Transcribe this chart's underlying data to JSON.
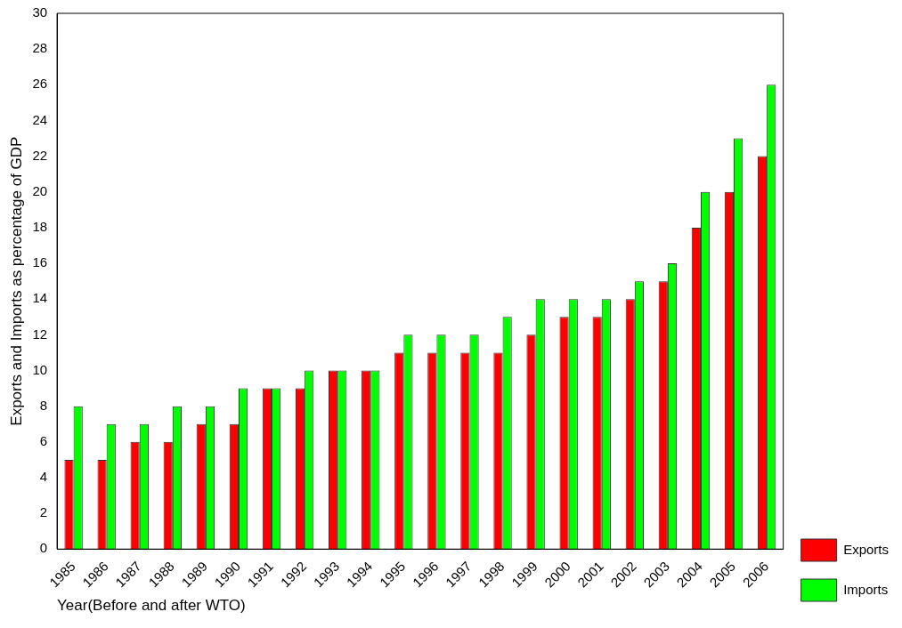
{
  "chart_data": {
    "type": "bar",
    "xlabel": "Year(Before and after WTO)",
    "ylabel": "Exports and Imports as percentage of GDP",
    "categories": [
      "1985",
      "1986",
      "1987",
      "1988",
      "1989",
      "1990",
      "1991",
      "1992",
      "1993",
      "1994",
      "1995",
      "1996",
      "1997",
      "1998",
      "1999",
      "2000",
      "2001",
      "2002",
      "2003",
      "2004",
      "2005",
      "2006"
    ],
    "series": [
      {
        "name": "Exports",
        "color": "#ff0000",
        "values": [
          5,
          5,
          6,
          6,
          7,
          7,
          9,
          9,
          10,
          10,
          11,
          11,
          11,
          11,
          12,
          13,
          13,
          14,
          15,
          18,
          20,
          22
        ]
      },
      {
        "name": "Imports",
        "color": "#00ff00",
        "values": [
          8,
          7,
          7,
          8,
          8,
          9,
          9,
          10,
          10,
          10,
          12,
          12,
          12,
          13,
          14,
          14,
          14,
          15,
          16,
          20,
          23,
          26
        ]
      }
    ],
    "ylim": [
      0,
      30
    ],
    "yticks": [
      0,
      2,
      4,
      6,
      8,
      10,
      12,
      14,
      16,
      18,
      20,
      22,
      24,
      26,
      28,
      30
    ],
    "grid": false,
    "legend": "right"
  }
}
